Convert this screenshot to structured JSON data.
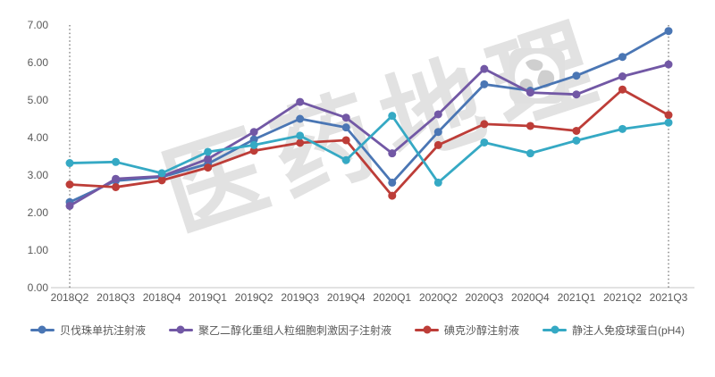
{
  "chart_data": {
    "type": "line",
    "title": "",
    "xlabel": "",
    "ylabel": "",
    "categories": [
      "2018Q2",
      "2018Q3",
      "2018Q4",
      "2019Q1",
      "2019Q2",
      "2019Q3",
      "2019Q4",
      "2020Q1",
      "2020Q2",
      "2020Q3",
      "2020Q4",
      "2021Q1",
      "2021Q2",
      "2021Q3"
    ],
    "series": [
      {
        "name": "贝伐珠单抗注射液",
        "color": "#4a76b4",
        "values": [
          2.28,
          2.85,
          2.95,
          3.3,
          3.95,
          4.5,
          4.27,
          2.8,
          4.15,
          5.42,
          5.25,
          5.65,
          6.15,
          6.84
        ]
      },
      {
        "name": "聚乙二醇化重组人粒细胞刺激因子注射液",
        "color": "#7258a5",
        "values": [
          2.18,
          2.9,
          2.97,
          3.43,
          4.15,
          4.95,
          4.53,
          3.58,
          4.62,
          5.83,
          5.2,
          5.15,
          5.63,
          5.95
        ]
      },
      {
        "name": "碘克沙醇注射液",
        "color": "#bd3d38",
        "values": [
          2.75,
          2.68,
          2.86,
          3.2,
          3.65,
          3.86,
          3.93,
          2.45,
          3.8,
          4.36,
          4.31,
          4.18,
          5.28,
          4.6
        ]
      },
      {
        "name": "静注人免疫球蛋白(pH4)",
        "color": "#35a9c4",
        "values": [
          3.32,
          3.35,
          3.05,
          3.62,
          3.8,
          4.05,
          3.4,
          4.58,
          2.8,
          3.87,
          3.58,
          3.92,
          4.23,
          4.4
        ]
      }
    ],
    "ylim": [
      0,
      7
    ],
    "ytick_step": 1,
    "ytick_labels": [
      "0.00",
      "1.00",
      "2.00",
      "3.00",
      "4.00",
      "5.00",
      "6.00",
      "7.00"
    ],
    "grid": false,
    "legend_position": "bottom",
    "vline_categories": [
      "2018Q2",
      "2021Q3"
    ]
  },
  "watermark": {
    "text": "医药地理"
  },
  "colors": {
    "axis_text": "#595959",
    "axis_line": "#d9d9d9",
    "dotted_line": "#4d4d4d",
    "watermark": "#e2e2e2",
    "globe_bg": "#e0e0e0",
    "globe_land": "#cfcfcf"
  }
}
